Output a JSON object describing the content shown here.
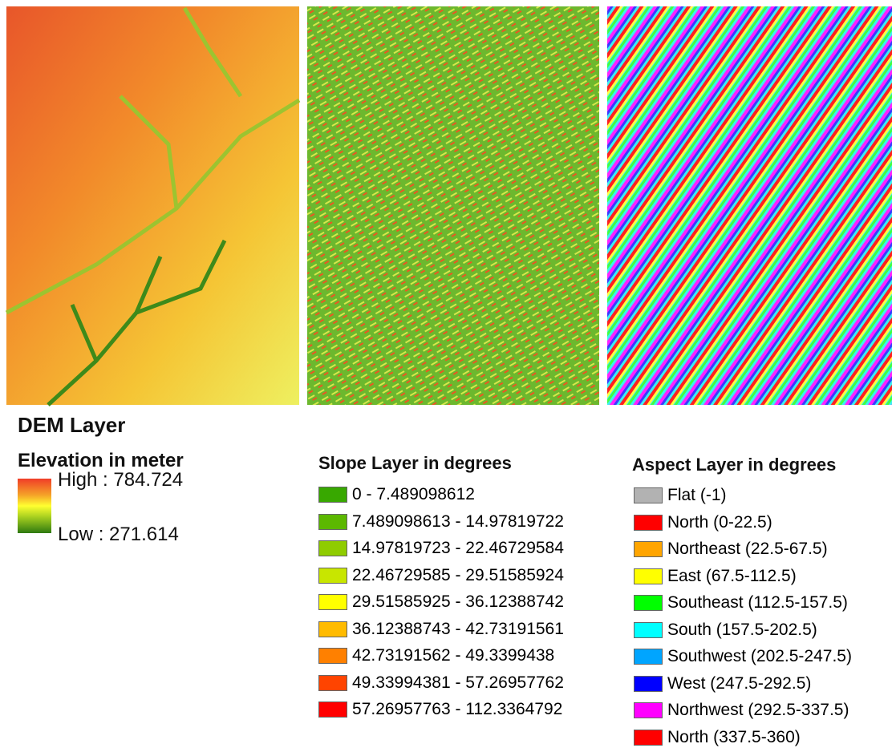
{
  "dem": {
    "title": "DEM Layer",
    "subtitle": "Elevation in meter",
    "high": "High : 784.724",
    "low": "Low : 271.614"
  },
  "slope": {
    "title": "Slope Layer in degrees",
    "items": [
      {
        "label": "0 - 7.489098612",
        "color": "#38a800"
      },
      {
        "label": "7.489098613 - 14.97819722",
        "color": "#5cb800"
      },
      {
        "label": "14.97819723 - 22.46729584",
        "color": "#8fcc00"
      },
      {
        "label": "22.46729585 - 29.51585924",
        "color": "#c8e600"
      },
      {
        "label": "29.51585925 - 36.12388742",
        "color": "#ffff00"
      },
      {
        "label": "36.12388743 - 42.73191561",
        "color": "#ffbb00"
      },
      {
        "label": "42.73191562 - 49.3399438",
        "color": "#ff8000"
      },
      {
        "label": "49.33994381 - 57.26957762",
        "color": "#ff4400"
      },
      {
        "label": "57.26957763 - 112.3364792",
        "color": "#ff0000"
      }
    ]
  },
  "aspect": {
    "title": "Aspect Layer in degrees",
    "items": [
      {
        "label": "Flat (-1)",
        "color": "#b2b2b2"
      },
      {
        "label": "North (0-22.5)",
        "color": "#ff0000"
      },
      {
        "label": "Northeast (22.5-67.5)",
        "color": "#ffa500"
      },
      {
        "label": "East (67.5-112.5)",
        "color": "#ffff00"
      },
      {
        "label": "Southeast (112.5-157.5)",
        "color": "#00ff00"
      },
      {
        "label": "South (157.5-202.5)",
        "color": "#00ffff"
      },
      {
        "label": "Southwest (202.5-247.5)",
        "color": "#00a5ff"
      },
      {
        "label": "West (247.5-292.5)",
        "color": "#0000ff"
      },
      {
        "label": "Northwest (292.5-337.5)",
        "color": "#ff00ff"
      },
      {
        "label": "North (337.5-360)",
        "color": "#ff0000"
      }
    ]
  }
}
